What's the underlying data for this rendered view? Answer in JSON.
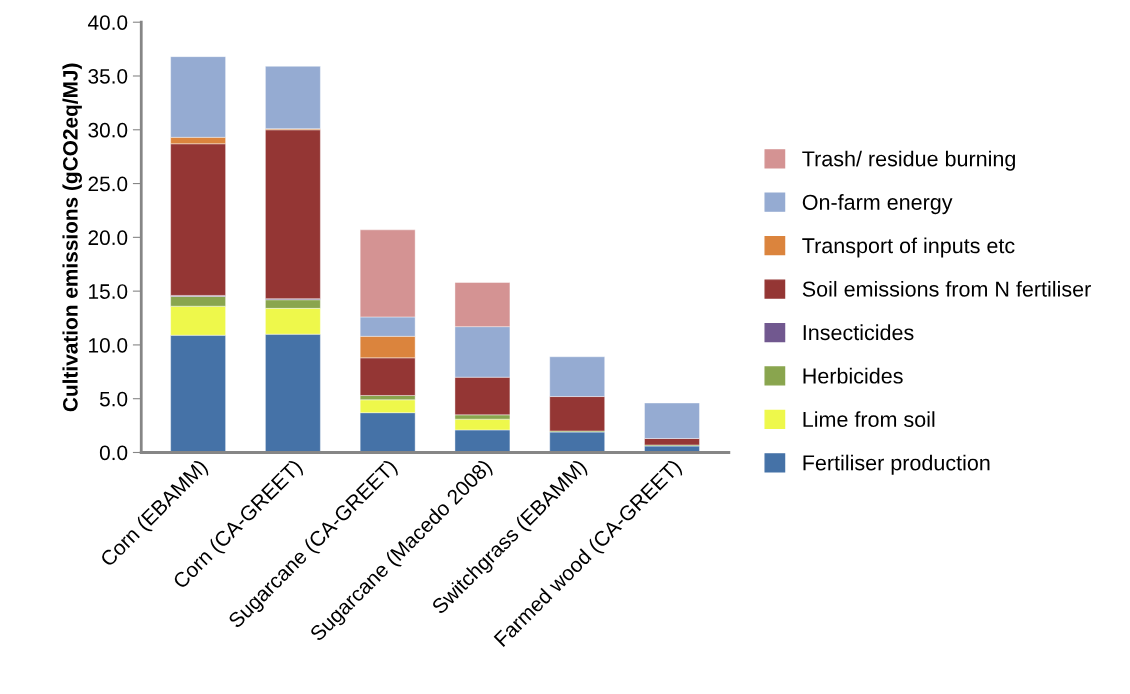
{
  "chart_data": {
    "type": "bar",
    "stacked": true,
    "ylabel": "Cultivation emissions (gCO2eq/MJ)",
    "categories": [
      "Corn (EBAMM)",
      "Corn (CA-GREET)",
      "Sugarcane (CA-GREET)",
      "Sugarcane (Macedo 2008)",
      "Switchgrass (EBAMM)",
      "Farmed wood (CA-GREET)"
    ],
    "series": [
      {
        "name": "Fertiliser production",
        "color": "#4572a7",
        "values": [
          10.9,
          11.0,
          3.7,
          2.1,
          1.9,
          0.6
        ]
      },
      {
        "name": "Lime from soil",
        "color": "#eef84b",
        "values": [
          2.7,
          2.4,
          1.2,
          1.0,
          0,
          0
        ]
      },
      {
        "name": "Herbicides",
        "color": "#89a54e",
        "values": [
          0.9,
          0.8,
          0.4,
          0.4,
          0.1,
          0.1
        ]
      },
      {
        "name": "Insecticides",
        "color": "#71588f",
        "values": [
          0.1,
          0.1,
          0,
          0,
          0,
          0
        ]
      },
      {
        "name": "Soil emissions from N fertiliser",
        "color": "#943634",
        "values": [
          14.1,
          15.7,
          3.5,
          3.5,
          3.2,
          0.6
        ]
      },
      {
        "name": "Transport of inputs etc",
        "color": "#db843d",
        "values": [
          0.6,
          0.1,
          2.0,
          0,
          0,
          0
        ]
      },
      {
        "name": "On-farm energy",
        "color": "#95abd2",
        "values": [
          7.5,
          5.8,
          1.8,
          4.7,
          3.7,
          3.3
        ]
      },
      {
        "name": "Trash/ residue burning",
        "color": "#d49393",
        "values": [
          0,
          0,
          8.1,
          4.1,
          0,
          0
        ]
      }
    ],
    "ylim": [
      0,
      40
    ],
    "yticks": [
      {
        "value": 0,
        "label": "0.0"
      },
      {
        "value": 5,
        "label": "5.0"
      },
      {
        "value": 10,
        "label": "10.0"
      },
      {
        "value": 15,
        "label": "15.0"
      },
      {
        "value": 20,
        "label": "20.0"
      },
      {
        "value": 25,
        "label": "25.0"
      },
      {
        "value": 30,
        "label": "30.0"
      },
      {
        "value": 35,
        "label": "35.0"
      },
      {
        "value": 40,
        "label": "40.0"
      }
    ],
    "grid": false,
    "legend": "right"
  }
}
